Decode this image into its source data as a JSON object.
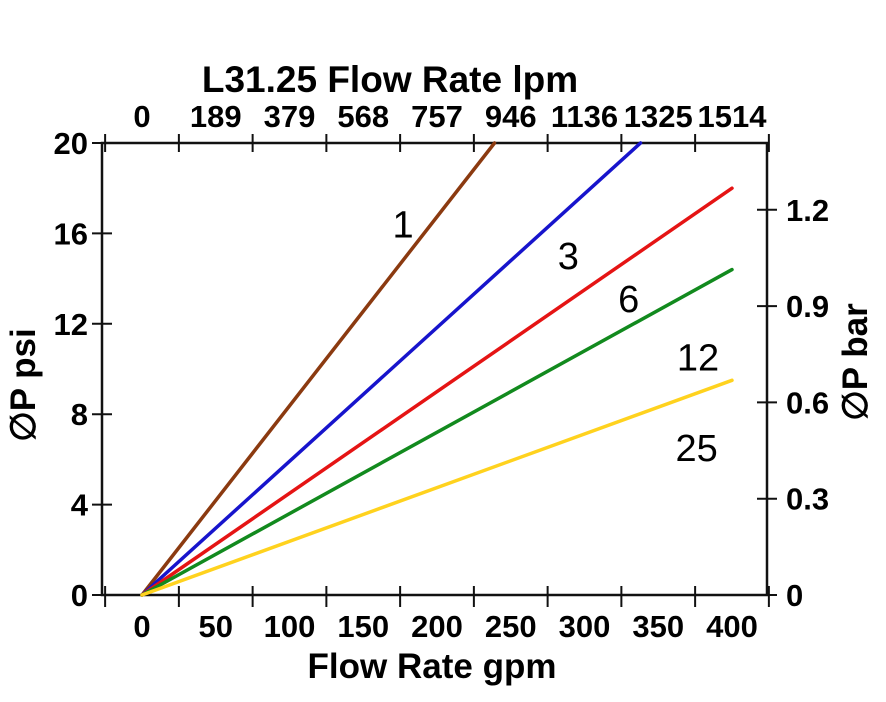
{
  "page": {
    "background_color": "#ffffff",
    "text_color": "#000000"
  },
  "chart_data": {
    "type": "line",
    "title": "L31.25 Flow Rate lpm",
    "xlabel": "Flow Rate gpm",
    "ylabel_left": "∅P psi",
    "ylabel_right": "∅P bar",
    "axis_color": "#111111",
    "grid": "off",
    "legend": "inline-labels-on-curves",
    "x_axis_bottom": {
      "unit": "gpm",
      "tick_labels": [
        0,
        50,
        100,
        150,
        200,
        250,
        300,
        350,
        400
      ],
      "range_shown_gpm": [
        -33,
        424
      ],
      "offset_minor_ticks_gpm": [
        -25,
        25,
        75,
        125,
        175,
        225,
        275,
        325,
        375,
        425
      ]
    },
    "x_axis_top": {
      "unit": "lpm",
      "tick_labels": [
        "0",
        "189",
        "379",
        "568",
        "757",
        "946",
        "1136",
        "1325",
        "1514"
      ],
      "tick_positions_gpm": [
        0,
        50,
        100,
        150,
        200,
        250,
        300,
        350,
        400
      ]
    },
    "y_axis_left": {
      "unit": "psi",
      "tick_labels": [
        0,
        4,
        8,
        12,
        16,
        20
      ],
      "range_psi": [
        0,
        20
      ]
    },
    "y_axis_right": {
      "unit": "bar",
      "tick_labels": [
        "0",
        "0.3",
        "0.6",
        "0.9",
        "1.2"
      ],
      "tick_values_bar": [
        0,
        0.3,
        0.6,
        0.9,
        1.2
      ]
    },
    "series": [
      {
        "label": "1",
        "color": "#8b3a10",
        "points_gpm_psi": [
          [
            0,
            0
          ],
          [
            239,
            20
          ]
        ],
        "label_pos_gpm_psi": [
          177,
          16.4
        ]
      },
      {
        "label": "3",
        "color": "#1714cc",
        "points_gpm_psi": [
          [
            0,
            0
          ],
          [
            338,
            20
          ]
        ],
        "label_pos_gpm_psi": [
          289,
          15.0
        ]
      },
      {
        "label": "6",
        "color": "#e51414",
        "points_gpm_psi": [
          [
            0,
            0
          ],
          [
            400,
            18.0
          ]
        ],
        "label_pos_gpm_psi": [
          330,
          13.1
        ]
      },
      {
        "label": "12",
        "color": "#128a1e",
        "points_gpm_psi": [
          [
            0,
            0
          ],
          [
            400,
            14.4
          ]
        ],
        "label_pos_gpm_psi": [
          377,
          10.5
        ]
      },
      {
        "label": "25",
        "color": "#ffd21e",
        "points_gpm_psi": [
          [
            0,
            0
          ],
          [
            400,
            9.5
          ]
        ],
        "label_pos_gpm_psi": [
          376,
          6.5
        ]
      }
    ]
  }
}
